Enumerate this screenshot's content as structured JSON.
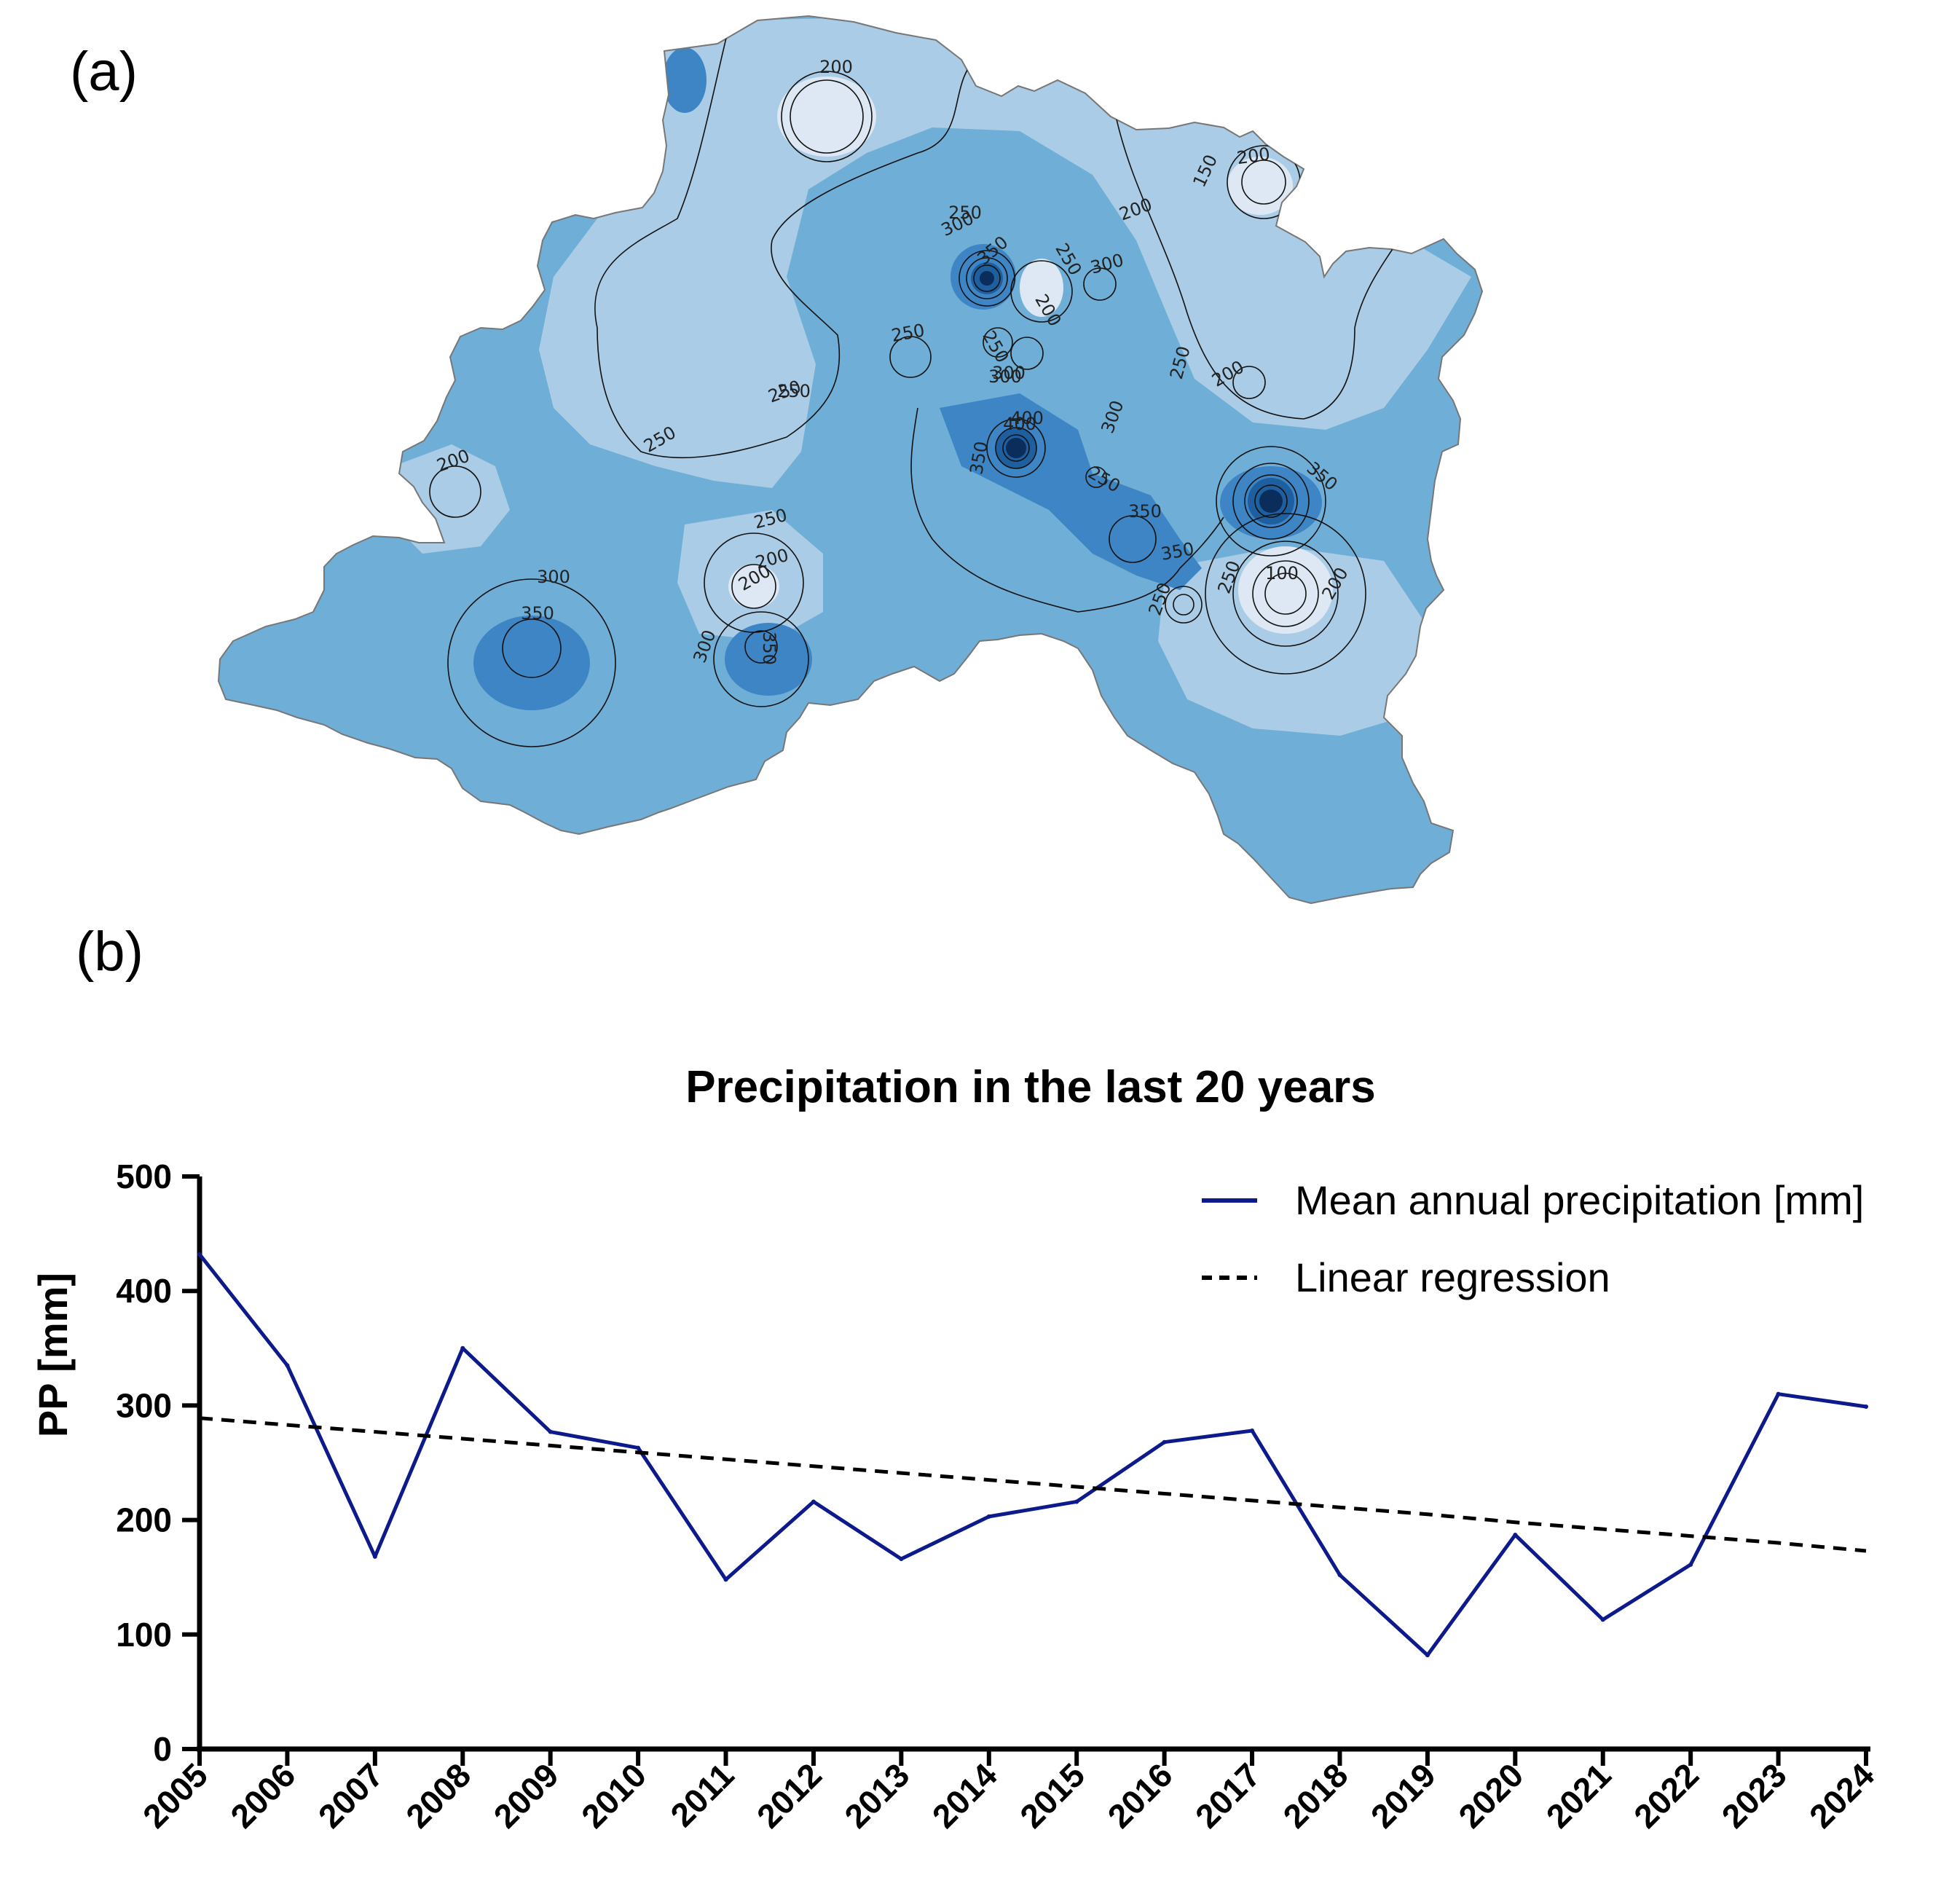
{
  "panels": {
    "a_label": "(a)",
    "b_label": "(b)"
  },
  "map": {
    "colors": {
      "lightest": "#dde8f4",
      "light": "#aacce6",
      "mid": "#6faed6",
      "dark": "#3d85c4",
      "darker": "#1d5f9f",
      "darkest": "#0b2d5c"
    },
    "contour_labels": [
      "200",
      "200",
      "150",
      "200",
      "300",
      "350",
      "250",
      "300",
      "200",
      "250",
      "250",
      "250",
      "200",
      "300",
      "250",
      "250",
      "200",
      "250",
      "350",
      "400",
      "300",
      "250",
      "350",
      "350",
      "350",
      "250",
      "200",
      "100",
      "250",
      "200",
      "300",
      "350",
      "300",
      "350",
      "200",
      "250",
      "250",
      "300",
      "400"
    ]
  },
  "chart_data": {
    "type": "line",
    "title": "Precipitation in the last 20 years",
    "xlabel": "",
    "ylabel": "PP [mm]",
    "ylim": [
      0,
      500
    ],
    "yticks": [
      "0",
      "100",
      "200",
      "300",
      "400",
      "500"
    ],
    "categories": [
      "2005",
      "2006",
      "2007",
      "2008",
      "2009",
      "2010",
      "2011",
      "2012",
      "2013",
      "2014",
      "2015",
      "2016",
      "2017",
      "2018",
      "2019",
      "2020",
      "2021",
      "2022",
      "2023",
      "2024"
    ],
    "series": [
      {
        "name": "Mean annual precipitation [mm]",
        "color": "#0d1a8c",
        "style": "solid",
        "values": [
          432,
          335,
          168,
          350,
          277,
          263,
          148,
          216,
          166,
          203,
          216,
          268,
          278,
          152,
          82,
          187,
          113,
          161,
          310,
          299
        ]
      },
      {
        "name": "Linear regression",
        "color": "#000000",
        "style": "dashed",
        "values": [
          289,
          283,
          277,
          271,
          265,
          259,
          253,
          247,
          241,
          235,
          229,
          223,
          217,
          211,
          205,
          198,
          192,
          186,
          180,
          173
        ]
      }
    ]
  }
}
